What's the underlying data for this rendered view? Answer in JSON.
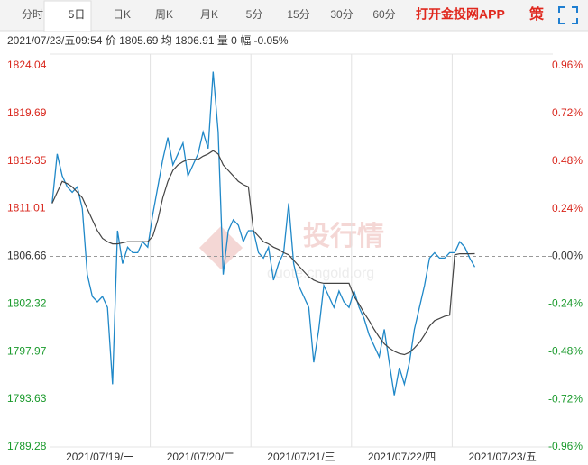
{
  "tabs": [
    "分时",
    "5日",
    "日K",
    "周K",
    "月K",
    "5分",
    "15分",
    "30分",
    "60分"
  ],
  "selected_tab": 1,
  "app_link": "打开金投网APP",
  "strategy_icon": "策",
  "info": "2021/07/23/五09:54  价 1805.69  均 1806.91  量 0  幅 -0.05%",
  "watermark": {
    "brand": "投行情",
    "site": "quote.cngold.org"
  },
  "chart_data": {
    "type": "line",
    "categories": [
      "2021/07/19/一",
      "2021/07/20/二",
      "2021/07/21/三",
      "2021/07/22/四",
      "2021/07/23/五"
    ],
    "ylim": [
      1789.28,
      1824.04
    ],
    "yticks": [
      1824.04,
      1819.69,
      1815.35,
      1811.01,
      1806.66,
      1802.32,
      1797.97,
      1793.63,
      1789.28
    ],
    "y2lim": [
      -0.96,
      0.96
    ],
    "y2ticks": [
      {
        "value": 0.96,
        "label": "0.96%"
      },
      {
        "value": 0.72,
        "label": "0.72%"
      },
      {
        "value": 0.48,
        "label": "0.48%"
      },
      {
        "value": 0.24,
        "label": "0.24%"
      },
      {
        "value": 0,
        "label": "0.00%"
      },
      {
        "value": -0.24,
        "label": "-0.24%"
      },
      {
        "value": -0.48,
        "label": "-0.48%"
      },
      {
        "value": -0.72,
        "label": "-0.72%"
      },
      {
        "value": -0.96,
        "label": "-0.96%"
      }
    ],
    "up_color": "#d9261c",
    "down_color": "#1a9a2c",
    "series": [
      {
        "name": "价",
        "color": "#1f88c8",
        "values": [
          [
            1811.5,
            1816,
            1814,
            1813,
            1812.5,
            1813,
            1811,
            1805,
            1803,
            1802.5,
            1803,
            1802,
            1795,
            1809,
            1806,
            1807.5,
            1807,
            1807,
            1808,
            1807.5
          ],
          [
            1810.5,
            1813,
            1815.5,
            1817.5,
            1815,
            1816,
            1817,
            1814,
            1815,
            1816,
            1818,
            1816.5,
            1823.5,
            1818,
            1805,
            1809,
            1810,
            1809.5,
            1808,
            1809
          ],
          [
            1809,
            1807,
            1806.5,
            1807.5,
            1804.5,
            1806,
            1807,
            1811.5,
            1806,
            1804,
            1803,
            1802,
            1797,
            1800,
            1804,
            1803,
            1802,
            1803.5,
            1802.5,
            1802
          ],
          [
            1803.5,
            1802,
            1801,
            1799.5,
            1798.5,
            1797.5,
            1800,
            1797,
            1794,
            1796.5,
            1795,
            1797,
            1800,
            1802,
            1804,
            1806.5,
            1807,
            1806.5,
            1806.5,
            1807
          ],
          [
            1807,
            1808,
            1807.5,
            1806.5,
            1805.69,
            null,
            null,
            null,
            null,
            null,
            null,
            null,
            null,
            null,
            null,
            null,
            null,
            null,
            null,
            null
          ]
        ]
      },
      {
        "name": "均",
        "color": "#444444",
        "values": [
          [
            1811.5,
            1812.5,
            1813.5,
            1813.3,
            1813,
            1812.5,
            1812,
            1811,
            1810,
            1809,
            1808.3,
            1808,
            1807.8,
            1807.8,
            1807.9,
            1808,
            1808,
            1808,
            1808,
            1808
          ],
          [
            1808.5,
            1810,
            1812,
            1813.5,
            1814.5,
            1815,
            1815.3,
            1815.5,
            1815.5,
            1815.5,
            1815.8,
            1816,
            1816.3,
            1816,
            1815,
            1814.5,
            1814,
            1813.5,
            1813.2,
            1813
          ],
          [
            1809,
            1808.5,
            1808,
            1807.8,
            1807.5,
            1807.3,
            1807,
            1806.8,
            1806.3,
            1805.8,
            1805.3,
            1804.8,
            1804.5,
            1804.3,
            1804.2,
            1804.2,
            1804.2,
            1804.2,
            1804.2,
            1804.2
          ],
          [
            1803,
            1802.3,
            1801.5,
            1800.8,
            1800,
            1799.3,
            1798.7,
            1798.3,
            1798,
            1797.8,
            1797.7,
            1797.9,
            1798.3,
            1798.8,
            1799.5,
            1800.3,
            1800.8,
            1801,
            1801.2,
            1801.3
          ],
          [
            1806.8,
            1806.9,
            1806.9,
            1806.9,
            1806.91,
            null,
            null,
            null,
            null,
            null,
            null,
            null,
            null,
            null,
            null,
            null,
            null,
            null,
            null,
            null
          ]
        ]
      }
    ]
  }
}
